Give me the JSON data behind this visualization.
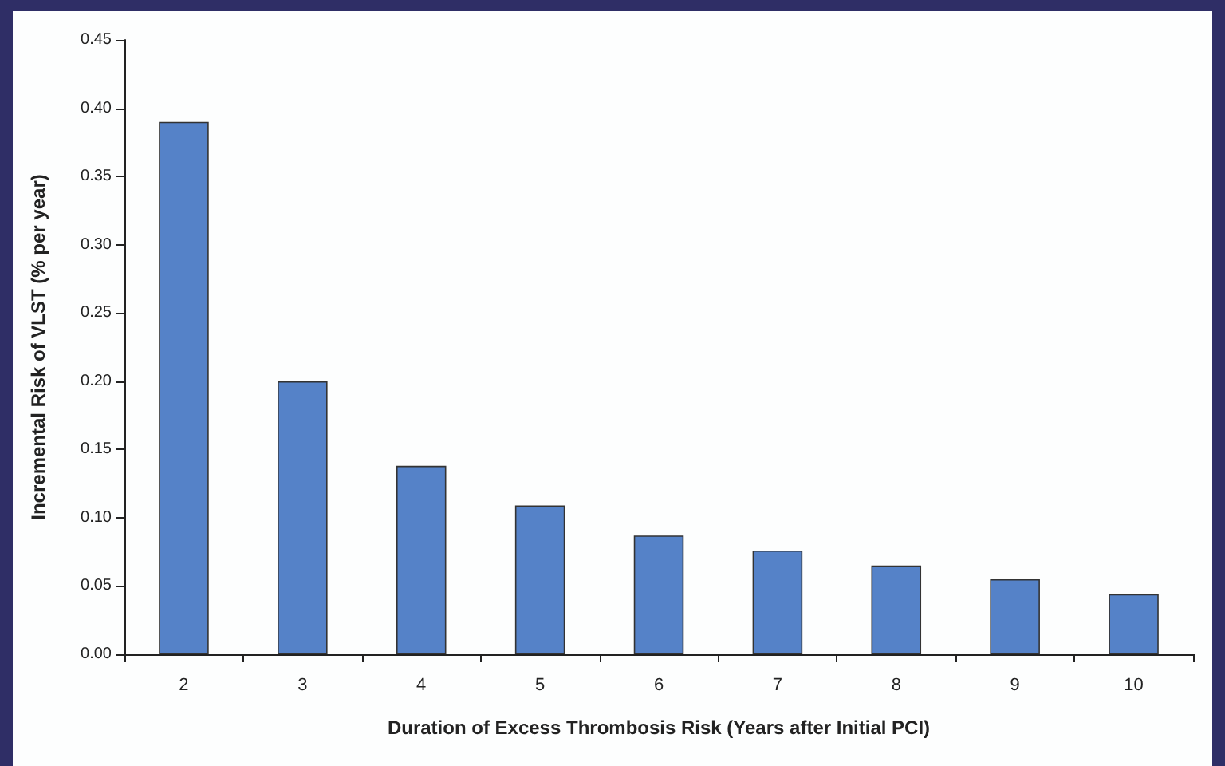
{
  "chart_data": {
    "type": "bar",
    "xlabel": "Duration of Excess Thrombosis Risk (Years after Initial PCI)",
    "ylabel": "Incremental Risk of VLST (% per year)",
    "categories": [
      "2",
      "3",
      "4",
      "5",
      "6",
      "7",
      "8",
      "9",
      "10"
    ],
    "values": [
      0.39,
      0.2,
      0.138,
      0.109,
      0.087,
      0.076,
      0.065,
      0.055,
      0.044
    ],
    "color": "#5582c8",
    "ylim": [
      0,
      0.45
    ],
    "yticks": [
      {
        "value": 0,
        "label": "0.00"
      },
      {
        "value": 0.05,
        "label": "0.05"
      },
      {
        "value": 0.1,
        "label": "0.10"
      },
      {
        "value": 0.15,
        "label": "0.15"
      },
      {
        "value": 0.2,
        "label": "0.20"
      },
      {
        "value": 0.25,
        "label": "0.25"
      },
      {
        "value": 0.3,
        "label": "0.30"
      },
      {
        "value": 0.35,
        "label": "0.35"
      },
      {
        "value": 0.4,
        "label": "0.40"
      },
      {
        "value": 0.45,
        "label": "0.45"
      }
    ],
    "grid": false
  }
}
